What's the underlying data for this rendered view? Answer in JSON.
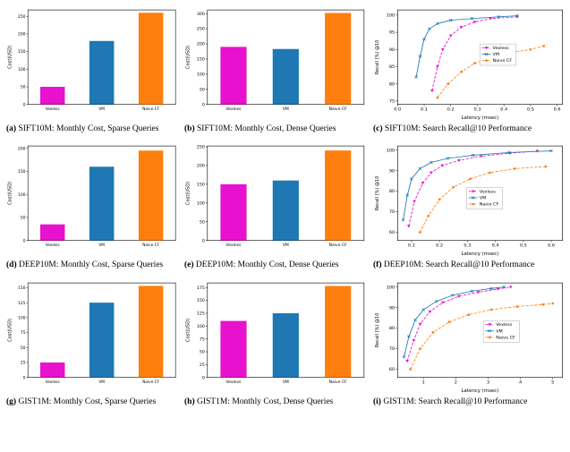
{
  "colors": {
    "vexless": "#e711ce",
    "vm": "#1f77b4",
    "naive_cf": "#ff7f0e"
  },
  "chart_data": [
    {
      "id": "a",
      "type": "bar",
      "caption_label": "(a)",
      "caption": "SIFT10M: Monthly Cost, Sparse Queries",
      "ylabel": "Cost(USD)",
      "categories": [
        "Vexless",
        "VM",
        "Naive CF"
      ],
      "values": [
        50,
        180,
        260
      ],
      "yticks": [
        0,
        50,
        100,
        150,
        200,
        250
      ],
      "ylim": [
        0,
        268
      ],
      "bar_colors": [
        "#e711ce",
        "#1f77b4",
        "#ff7f0e"
      ]
    },
    {
      "id": "b",
      "type": "bar",
      "caption_label": "(b)",
      "caption": "SIFT10M: Monthly Cost, Dense Queries",
      "ylabel": "Cost(USD)",
      "categories": [
        "Vexless",
        "VM",
        "Naive CF"
      ],
      "values": [
        190,
        183,
        302
      ],
      "yticks": [
        0,
        50,
        100,
        150,
        200,
        250,
        300
      ],
      "ylim": [
        0,
        312
      ],
      "bar_colors": [
        "#e711ce",
        "#1f77b4",
        "#ff7f0e"
      ]
    },
    {
      "id": "c",
      "type": "line",
      "caption_label": "(c)",
      "caption": "SIFT10M: Search Recall@10 Performance",
      "xlabel": "Latency (msec)",
      "ylabel": "Recall (%) @10",
      "xlim": [
        0.0,
        0.62
      ],
      "xticks": [
        0.0,
        0.1,
        0.2,
        0.3,
        0.4,
        0.5,
        0.6
      ],
      "xtick_labels": [
        "0.0",
        "0.1",
        "0.2",
        "0.3",
        "0.4",
        "0.5",
        "0.6"
      ],
      "ylim": [
        74,
        101.5
      ],
      "yticks": [
        75,
        80,
        85,
        90,
        95,
        100
      ],
      "legend_pos": {
        "x": 0.5,
        "y": 0.36
      },
      "series": [
        {
          "name": "Vexless",
          "color": "#e711ce",
          "marker": "triangle",
          "dash": "3,1.5",
          "x": [
            0.13,
            0.15,
            0.17,
            0.2,
            0.24,
            0.29,
            0.35,
            0.45
          ],
          "y": [
            78,
            85,
            90,
            94,
            96.5,
            98,
            99,
            99.5
          ]
        },
        {
          "name": "VM",
          "color": "#1f77b4",
          "marker": "x",
          "dash": "",
          "x": [
            0.07,
            0.085,
            0.1,
            0.12,
            0.15,
            0.2,
            0.28,
            0.38,
            0.45
          ],
          "y": [
            82,
            88,
            93,
            96,
            97.5,
            98.5,
            99,
            99.5,
            99.8
          ]
        },
        {
          "name": "Naive CF",
          "color": "#ff7f0e",
          "marker": "circle",
          "dash": "3,1.5",
          "x": [
            0.15,
            0.19,
            0.24,
            0.29,
            0.35,
            0.42,
            0.5,
            0.55
          ],
          "y": [
            76,
            80,
            83.5,
            86,
            87.5,
            89,
            90,
            91
          ]
        }
      ]
    },
    {
      "id": "d",
      "type": "bar",
      "caption_label": "(d)",
      "caption": "DEEP10M: Monthly Cost, Sparse Queries",
      "ylabel": "Cost(USD)",
      "categories": [
        "Vexless",
        "VM",
        "Naive CF"
      ],
      "values": [
        35,
        160,
        195
      ],
      "yticks": [
        0,
        50,
        100,
        150,
        200
      ],
      "ylim": [
        0,
        205
      ],
      "bar_colors": [
        "#e711ce",
        "#1f77b4",
        "#ff7f0e"
      ]
    },
    {
      "id": "e",
      "type": "bar",
      "caption_label": "(e)",
      "caption": "DEEP10M: Monthly Cost, Dense Queries",
      "ylabel": "Cost(USD)",
      "categories": [
        "Vexless",
        "VM",
        "Naive CF"
      ],
      "values": [
        150,
        160,
        240
      ],
      "yticks": [
        0,
        50,
        100,
        150,
        200,
        250
      ],
      "ylim": [
        0,
        252
      ],
      "bar_colors": [
        "#e711ce",
        "#1f77b4",
        "#ff7f0e"
      ]
    },
    {
      "id": "f",
      "type": "line",
      "caption_label": "(f)",
      "caption": "DEEP10M: Search Recall@10 Performance",
      "xlabel": "Latency (msec)",
      "ylabel": "Recall (%) @10",
      "xlim": [
        0.05,
        0.64
      ],
      "xticks": [
        0.1,
        0.2,
        0.3,
        0.4,
        0.5,
        0.6
      ],
      "xtick_labels": [
        "0.1",
        "0.2",
        "0.3",
        "0.4",
        "0.5",
        "0.6"
      ],
      "ylim": [
        56,
        102
      ],
      "yticks": [
        60,
        70,
        80,
        90,
        100
      ],
      "legend_pos": {
        "x": 0.42,
        "y": 0.44
      },
      "series": [
        {
          "name": "Vexless",
          "color": "#e711ce",
          "marker": "triangle",
          "dash": "3,1.5",
          "x": [
            0.09,
            0.11,
            0.14,
            0.17,
            0.21,
            0.27,
            0.35,
            0.45,
            0.55
          ],
          "y": [
            63,
            75,
            84,
            89,
            92.5,
            95,
            97,
            98.5,
            99.5
          ]
        },
        {
          "name": "VM",
          "color": "#1f77b4",
          "marker": "x",
          "dash": "",
          "x": [
            0.07,
            0.085,
            0.1,
            0.13,
            0.17,
            0.23,
            0.32,
            0.45,
            0.6
          ],
          "y": [
            66,
            78,
            86,
            91,
            94,
            96,
            97.5,
            98.8,
            99.6
          ]
        },
        {
          "name": "Naive CF",
          "color": "#ff7f0e",
          "marker": "circle",
          "dash": "3,1.5",
          "x": [
            0.13,
            0.16,
            0.2,
            0.25,
            0.31,
            0.38,
            0.47,
            0.58
          ],
          "y": [
            60,
            68,
            76,
            82,
            86,
            89,
            91,
            92
          ]
        }
      ]
    },
    {
      "id": "g",
      "type": "bar",
      "caption_label": "(g)",
      "caption": "GIST1M: Monthly Cost, Sparse Queries",
      "ylabel": "Cost(USD)",
      "categories": [
        "Vexless",
        "VM",
        "Naive CF"
      ],
      "values": [
        25,
        125,
        153
      ],
      "yticks": [
        0,
        25,
        50,
        75,
        100,
        125,
        150
      ],
      "ylim": [
        0,
        158
      ],
      "bar_colors": [
        "#e711ce",
        "#1f77b4",
        "#ff7f0e"
      ]
    },
    {
      "id": "h",
      "type": "bar",
      "caption_label": "(h)",
      "caption": "GIST1M: Monthly Cost, Dense Queries",
      "ylabel": "Cost(USD)",
      "categories": [
        "Vexless",
        "VM",
        "Naive CF"
      ],
      "values": [
        110,
        125,
        178
      ],
      "yticks": [
        0,
        25,
        50,
        75,
        100,
        125,
        150,
        175
      ],
      "ylim": [
        0,
        184
      ],
      "bar_colors": [
        "#e711ce",
        "#1f77b4",
        "#ff7f0e"
      ]
    },
    {
      "id": "i",
      "type": "line",
      "caption_label": "(i)",
      "caption": "GIST1M: Search Recall@10 Performance",
      "xlabel": "Latency (msec)",
      "ylabel": "Recall (%) @10",
      "xlim": [
        0.2,
        5.3
      ],
      "xticks": [
        1,
        2,
        3,
        4,
        5
      ],
      "xtick_labels": [
        "1",
        "2",
        "3",
        "4",
        "5"
      ],
      "ylim": [
        56,
        102
      ],
      "yticks": [
        60,
        70,
        80,
        90,
        100
      ],
      "legend_pos": {
        "x": 0.52,
        "y": 0.4
      },
      "series": [
        {
          "name": "Vexless",
          "color": "#e711ce",
          "marker": "triangle",
          "dash": "3,1.5",
          "x": [
            0.5,
            0.7,
            0.9,
            1.2,
            1.6,
            2.1,
            2.7,
            3.3,
            3.7
          ],
          "y": [
            64,
            74,
            82,
            88,
            92.5,
            95.5,
            97.5,
            99,
            100
          ]
        },
        {
          "name": "VM",
          "color": "#1f77b4",
          "marker": "x",
          "dash": "",
          "x": [
            0.4,
            0.55,
            0.75,
            1.0,
            1.4,
            1.9,
            2.5,
            3.1,
            3.5
          ],
          "y": [
            66,
            76,
            84,
            89,
            93,
            96,
            98,
            99.3,
            100
          ]
        },
        {
          "name": "Naive CF",
          "color": "#ff7f0e",
          "marker": "circle",
          "dash": "3,1.5",
          "x": [
            0.6,
            0.9,
            1.3,
            1.8,
            2.4,
            3.1,
            3.9,
            4.7,
            5.0
          ],
          "y": [
            60,
            70,
            78,
            83,
            86.5,
            89,
            90.5,
            91.5,
            92
          ]
        }
      ]
    }
  ]
}
